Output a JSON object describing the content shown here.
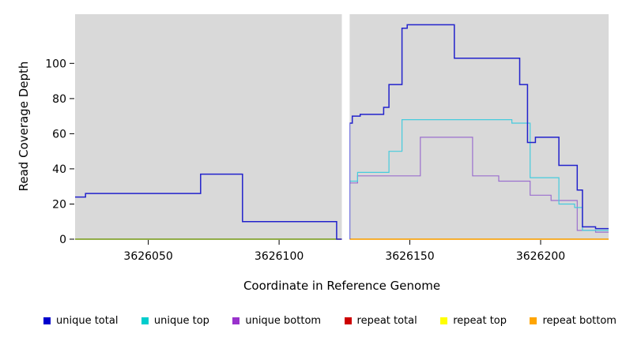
{
  "chart_data": {
    "type": "line",
    "title": "",
    "xlabel": "Coordinate in Reference Genome",
    "ylabel": "Read Coverage Depth",
    "xlim": [
      3626022,
      3626226
    ],
    "ylim": [
      0,
      128
    ],
    "x_ticks": [
      3626050,
      3626100,
      3626150,
      3626200
    ],
    "y_ticks": [
      0,
      20,
      40,
      60,
      80,
      100
    ],
    "grid": false,
    "panel_color": "#D9D9D9",
    "gap_x": [
      3626124,
      3626127
    ],
    "legend_position": "bottom",
    "legend": [
      {
        "label": "unique total",
        "color": "#0000CD"
      },
      {
        "label": "unique top",
        "color": "#00CDCD"
      },
      {
        "label": "unique bottom",
        "color": "#9932CC"
      },
      {
        "label": "repeat total",
        "color": "#CD0000"
      },
      {
        "label": "repeat top",
        "color": "#FFFF00"
      },
      {
        "label": "repeat bottom",
        "color": "#FFA500"
      }
    ],
    "series": [
      {
        "name": "repeat total",
        "color": "#CC0000",
        "width": 1.2,
        "segments": [
          [
            [
              3626022,
              0
            ],
            [
              3626124,
              0
            ]
          ],
          [
            [
              3626127,
              0
            ],
            [
              3626226,
              0
            ]
          ]
        ]
      },
      {
        "name": "repeat top",
        "color": "#EEEE00",
        "width": 1.2,
        "segments": [
          [
            [
              3626022,
              0
            ],
            [
              3626124,
              0
            ]
          ],
          [
            [
              3626127,
              0
            ],
            [
              3626226,
              0
            ]
          ]
        ]
      },
      {
        "name": "repeat bottom",
        "color": "#FFA500",
        "width": 1.2,
        "segments": [
          [
            [
              3626022,
              0
            ],
            [
              3626124,
              0
            ]
          ],
          [
            [
              3626127,
              0
            ],
            [
              3626226,
              0
            ]
          ]
        ]
      },
      {
        "name": "zero baseline left",
        "color": "#33A02C",
        "width": 1.1,
        "segments": [
          [
            [
              3626022,
              0
            ],
            [
              3626124,
              0
            ]
          ]
        ]
      },
      {
        "name": "unique bottom",
        "color": "#9B6FCE",
        "width": 1.2,
        "segments": [
          [
            [
              3626127,
              32
            ],
            [
              3626130,
              32
            ],
            [
              3626130,
              36
            ],
            [
              3626154,
              36
            ],
            [
              3626154,
              58
            ],
            [
              3626174,
              58
            ],
            [
              3626174,
              36
            ],
            [
              3626184,
              36
            ],
            [
              3626184,
              33
            ],
            [
              3626196,
              33
            ],
            [
              3626196,
              25
            ],
            [
              3626204,
              25
            ],
            [
              3626204,
              22
            ],
            [
              3626214,
              22
            ],
            [
              3626214,
              5
            ],
            [
              3626221,
              5
            ],
            [
              3626221,
              4
            ],
            [
              3626226,
              4
            ]
          ]
        ]
      },
      {
        "name": "unique top",
        "color": "#45CBDD",
        "width": 1.2,
        "segments": [
          [
            [
              3626127,
              33
            ],
            [
              3626130,
              33
            ],
            [
              3626130,
              38
            ],
            [
              3626142,
              38
            ],
            [
              3626142,
              50
            ],
            [
              3626147,
              50
            ],
            [
              3626147,
              68
            ],
            [
              3626189,
              68
            ],
            [
              3626189,
              66
            ],
            [
              3626196,
              66
            ],
            [
              3626196,
              35
            ],
            [
              3626207,
              35
            ],
            [
              3626207,
              20
            ],
            [
              3626213,
              20
            ],
            [
              3626213,
              18
            ],
            [
              3626216,
              18
            ],
            [
              3626216,
              5
            ],
            [
              3626226,
              5
            ]
          ]
        ]
      },
      {
        "name": "unique total",
        "color": "#2222CC",
        "width": 1.5,
        "segments": [
          [
            [
              3626022,
              24
            ],
            [
              3626026,
              24
            ],
            [
              3626026,
              26
            ],
            [
              3626070,
              26
            ],
            [
              3626070,
              37
            ],
            [
              3626086,
              37
            ],
            [
              3626086,
              10
            ],
            [
              3626122,
              10
            ],
            [
              3626122,
              0
            ],
            [
              3626124,
              0
            ]
          ],
          [
            [
              3626127,
              0
            ],
            [
              3626127,
              66
            ],
            [
              3626128,
              66
            ],
            [
              3626128,
              70
            ],
            [
              3626131,
              70
            ],
            [
              3626131,
              71
            ],
            [
              3626140,
              71
            ],
            [
              3626140,
              75
            ],
            [
              3626142,
              75
            ],
            [
              3626142,
              88
            ],
            [
              3626147,
              88
            ],
            [
              3626147,
              120
            ],
            [
              3626149,
              120
            ],
            [
              3626149,
              122
            ],
            [
              3626167,
              122
            ],
            [
              3626167,
              103
            ],
            [
              3626192,
              103
            ],
            [
              3626192,
              88
            ],
            [
              3626195,
              88
            ],
            [
              3626195,
              55
            ],
            [
              3626198,
              55
            ],
            [
              3626198,
              58
            ],
            [
              3626207,
              58
            ],
            [
              3626207,
              42
            ],
            [
              3626214,
              42
            ],
            [
              3626214,
              28
            ],
            [
              3626216,
              28
            ],
            [
              3626216,
              7
            ],
            [
              3626221,
              7
            ],
            [
              3626221,
              6
            ],
            [
              3626226,
              6
            ]
          ]
        ]
      }
    ]
  }
}
